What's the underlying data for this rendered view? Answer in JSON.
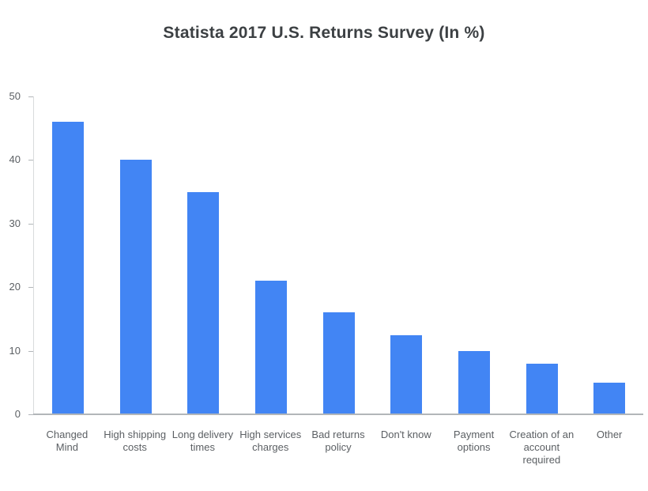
{
  "page": {
    "background": "#ffffff"
  },
  "chart_data": {
    "type": "bar",
    "title": "Statista 2017 U.S. Returns Survey (In %)",
    "categories": [
      "Changed Mind",
      "High shipping costs",
      "Long delivery times",
      "High services charges",
      "Bad returns policy",
      "Don't know",
      "Payment options",
      "Creation of an account required",
      "Other"
    ],
    "values": [
      46,
      40,
      35,
      21,
      16,
      12.5,
      10,
      8,
      5
    ],
    "unit": "%",
    "xlabel": "",
    "ylabel": "",
    "ylim": [
      0,
      50
    ],
    "yticks": [
      0,
      10,
      20,
      30,
      40,
      50
    ],
    "grid": false,
    "legend": false,
    "bar_color": "#4285F4",
    "colors": {
      "title_text": "#3c4043",
      "axis_text": "#5b5f63",
      "axis_line": "#d9dbdd",
      "baseline": "#b2b6b9"
    }
  }
}
